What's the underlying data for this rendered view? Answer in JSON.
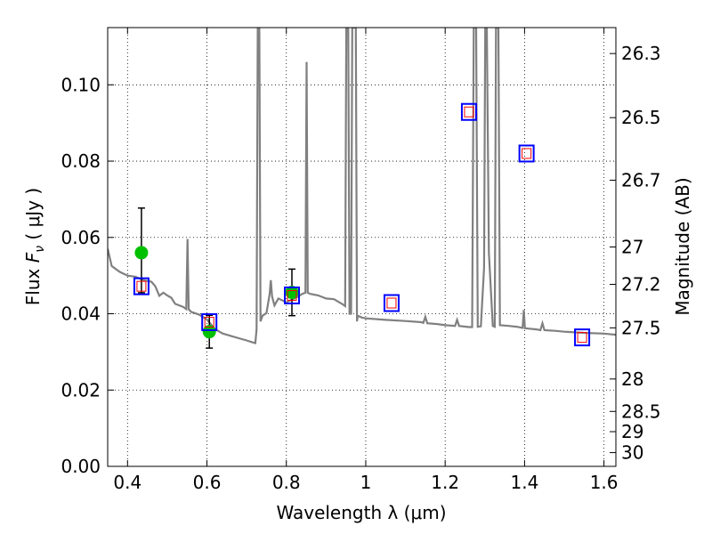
{
  "chart_data": {
    "type": "scatter",
    "xlabel": "Wavelength  λ (μm)",
    "ylabel": "Flux  F_ν  ( μJy )",
    "ylabel_parts": {
      "prefix": "Flux  ",
      "symbol": "F",
      "sub": "ν",
      "unit": "  ( μJy )"
    },
    "y2label": "Magnitude (AB)",
    "xlim": [
      0.35,
      1.63
    ],
    "ylim": [
      0.0,
      0.115
    ],
    "x_ticks": [
      0.4,
      0.6,
      0.8,
      1.0,
      1.2,
      1.4,
      1.6
    ],
    "x_tick_labels": [
      "0.4",
      "0.6",
      "0.8",
      "1",
      "1.2",
      "1.4",
      "1.6"
    ],
    "y_ticks": [
      0.0,
      0.02,
      0.04,
      0.06,
      0.08,
      0.1
    ],
    "y_tick_labels": [
      "0.00",
      "0.02",
      "0.04",
      "0.06",
      "0.08",
      "0.10"
    ],
    "magnitude_ticks": [
      {
        "label": "26.3",
        "flux": 0.1082
      },
      {
        "label": "26.5",
        "flux": 0.0914
      },
      {
        "label": "26.7",
        "flux": 0.075
      },
      {
        "label": "27",
        "flux": 0.0575
      },
      {
        "label": "27.2",
        "flux": 0.0477
      },
      {
        "label": "27.5",
        "flux": 0.0363
      },
      {
        "label": "28",
        "flux": 0.0229
      },
      {
        "label": "28.5",
        "flux": 0.0144
      },
      {
        "label": "29",
        "flux": 0.0091
      },
      {
        "label": "30",
        "flux": 0.0036
      }
    ],
    "grid": true,
    "colors": {
      "spectrum": "#808080",
      "observed": "#00c000",
      "model_box": "#0000ff",
      "model_inner": "#ff0000",
      "errorbar": "#000000"
    },
    "series": [
      {
        "kind": "line",
        "points": [
          [
            0.35,
            0.057
          ],
          [
            0.36,
            0.0525
          ],
          [
            0.38,
            0.051
          ],
          [
            0.4,
            0.05
          ],
          [
            0.42,
            0.0497
          ],
          [
            0.44,
            0.0488
          ],
          [
            0.46,
            0.0484
          ],
          [
            0.47,
            0.0472
          ],
          [
            0.48,
            0.0447
          ],
          [
            0.49,
            0.0455
          ],
          [
            0.5,
            0.0448
          ],
          [
            0.51,
            0.0442
          ],
          [
            0.52,
            0.0426
          ],
          [
            0.53,
            0.0422
          ],
          [
            0.54,
            0.0418
          ],
          [
            0.548,
            0.0412
          ],
          [
            0.551,
            0.0596
          ],
          [
            0.554,
            0.0412
          ],
          [
            0.56,
            0.0405
          ],
          [
            0.58,
            0.0398
          ],
          [
            0.6,
            0.0385
          ],
          [
            0.62,
            0.036
          ],
          [
            0.64,
            0.0348
          ],
          [
            0.66,
            0.0342
          ],
          [
            0.68,
            0.0336
          ],
          [
            0.7,
            0.033
          ],
          [
            0.715,
            0.0325
          ],
          [
            0.722,
            0.0323
          ],
          [
            0.725,
            0.036
          ],
          [
            0.728,
            0.115
          ],
          [
            0.732,
            0.115
          ],
          [
            0.735,
            0.038
          ],
          [
            0.74,
            0.0395
          ],
          [
            0.75,
            0.0402
          ],
          [
            0.758,
            0.0452
          ],
          [
            0.761,
            0.0488
          ],
          [
            0.764,
            0.0445
          ],
          [
            0.77,
            0.0422
          ],
          [
            0.78,
            0.044
          ],
          [
            0.8,
            0.043
          ],
          [
            0.82,
            0.044
          ],
          [
            0.83,
            0.0445
          ],
          [
            0.84,
            0.0452
          ],
          [
            0.848,
            0.0455
          ],
          [
            0.851,
            0.106
          ],
          [
            0.854,
            0.0455
          ],
          [
            0.86,
            0.0452
          ],
          [
            0.88,
            0.0448
          ],
          [
            0.9,
            0.044
          ],
          [
            0.92,
            0.0438
          ],
          [
            0.94,
            0.0426
          ],
          [
            0.948,
            0.042
          ],
          [
            0.951,
            0.115
          ],
          [
            0.956,
            0.115
          ],
          [
            0.959,
            0.04
          ],
          [
            0.963,
            0.04
          ],
          [
            0.966,
            0.115
          ],
          [
            0.975,
            0.115
          ],
          [
            0.978,
            0.038
          ],
          [
            0.98,
            0.0395
          ],
          [
            0.99,
            0.039
          ],
          [
            1.0,
            0.0388
          ],
          [
            1.05,
            0.0384
          ],
          [
            1.1,
            0.0381
          ],
          [
            1.14,
            0.0378
          ],
          [
            1.145,
            0.0376
          ],
          [
            1.15,
            0.0392
          ],
          [
            1.155,
            0.0375
          ],
          [
            1.18,
            0.0373
          ],
          [
            1.2,
            0.037
          ],
          [
            1.225,
            0.0368
          ],
          [
            1.23,
            0.0384
          ],
          [
            1.235,
            0.0368
          ],
          [
            1.26,
            0.0365
          ],
          [
            1.268,
            0.0365
          ],
          [
            1.272,
            0.115
          ],
          [
            1.278,
            0.115
          ],
          [
            1.282,
            0.0366
          ],
          [
            1.29,
            0.0367
          ],
          [
            1.298,
            0.052
          ],
          [
            1.301,
            0.115
          ],
          [
            1.305,
            0.115
          ],
          [
            1.31,
            0.056
          ],
          [
            1.32,
            0.0368
          ],
          [
            1.325,
            0.0366
          ],
          [
            1.328,
            0.115
          ],
          [
            1.334,
            0.115
          ],
          [
            1.338,
            0.037
          ],
          [
            1.36,
            0.0368
          ],
          [
            1.38,
            0.0366
          ],
          [
            1.395,
            0.0363
          ],
          [
            1.398,
            0.041
          ],
          [
            1.401,
            0.0362
          ],
          [
            1.43,
            0.0359
          ],
          [
            1.44,
            0.0357
          ],
          [
            1.445,
            0.0375
          ],
          [
            1.45,
            0.0357
          ],
          [
            1.48,
            0.0355
          ],
          [
            1.5,
            0.0353
          ],
          [
            1.55,
            0.035
          ],
          [
            1.6,
            0.0348
          ],
          [
            1.63,
            0.0345
          ]
        ]
      },
      {
        "kind": "observed",
        "points": [
          {
            "x": 0.435,
            "y": 0.056,
            "yerr_low": 0.0105,
            "yerr_high": 0.0117
          },
          {
            "x": 0.606,
            "y": 0.0353,
            "yerr_low": 0.0043,
            "yerr_high": 0.0043
          },
          {
            "x": 0.814,
            "y": 0.0456,
            "yerr_low": 0.0061,
            "yerr_high": 0.0061
          }
        ]
      },
      {
        "kind": "model",
        "points": [
          {
            "x": 0.435,
            "y": 0.0472
          },
          {
            "x": 0.606,
            "y": 0.0378
          },
          {
            "x": 0.814,
            "y": 0.0448
          },
          {
            "x": 1.065,
            "y": 0.0428
          },
          {
            "x": 1.26,
            "y": 0.0929
          },
          {
            "x": 1.405,
            "y": 0.082
          },
          {
            "x": 1.545,
            "y": 0.0338
          }
        ]
      }
    ]
  }
}
